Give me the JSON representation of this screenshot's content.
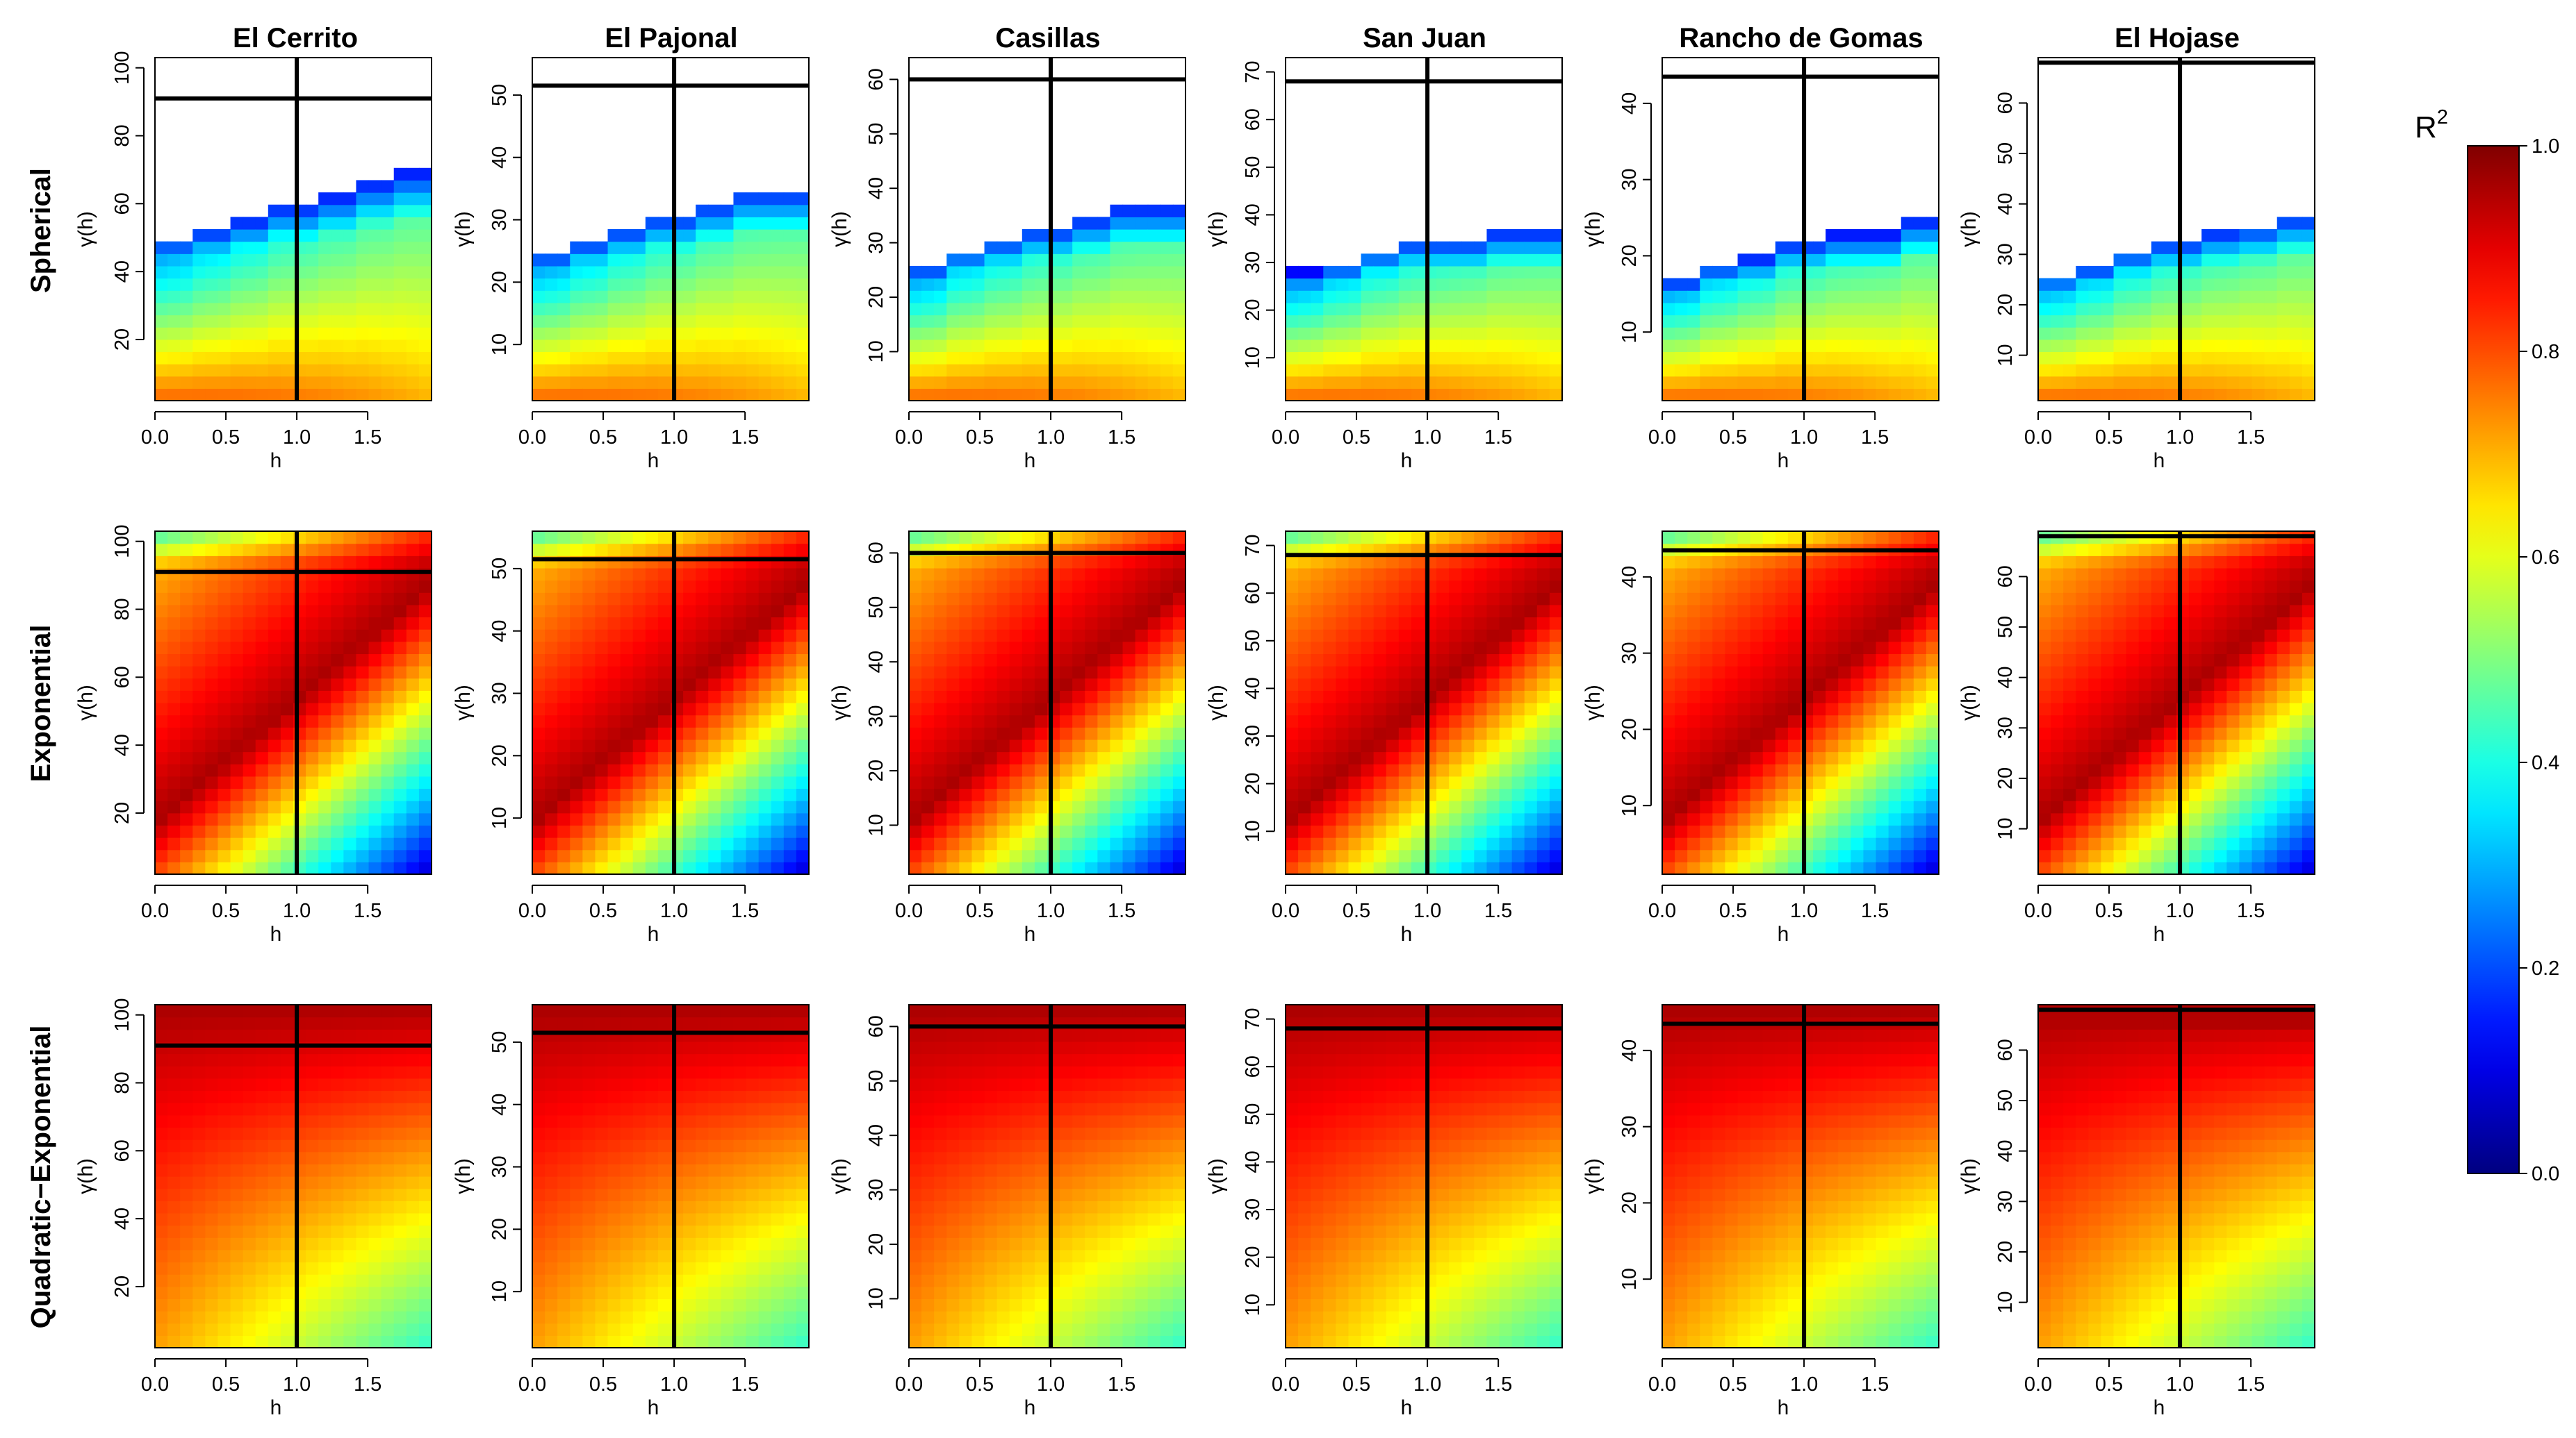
{
  "chart_data": {
    "type": "heatmap",
    "columns": [
      "El Cerrito",
      "El Pajonal",
      "Casillas",
      "San Juan",
      "Rancho de Gomas",
      "El Hojase"
    ],
    "rows": [
      "Spherical",
      "Exponential",
      "Quadratic−Exponential"
    ],
    "xlabel": "h",
    "ylabel": "γ(h)",
    "xlim": [
      0,
      1.95
    ],
    "x_ticks": [
      "0.0",
      "0.5",
      "1.0",
      "1.5"
    ],
    "vertical_line_h": 1.0,
    "sites": [
      {
        "name": "El Cerrito",
        "ylim": [
          2,
          103
        ],
        "y_ticks": [
          "20",
          "40",
          "60",
          "80",
          "100"
        ],
        "hline": 91,
        "spherical_top": [
          50,
          53,
          56,
          60,
          63,
          67,
          70
        ]
      },
      {
        "name": "El Pajonal",
        "ylim": [
          1,
          56
        ],
        "y_ticks": [
          "10",
          "20",
          "30",
          "40",
          "50"
        ],
        "hline": 51.5,
        "spherical_top": [
          25,
          27,
          29,
          31,
          33,
          35,
          35
        ]
      },
      {
        "name": "Casillas",
        "ylim": [
          1,
          64
        ],
        "y_ticks": [
          "10",
          "20",
          "30",
          "40",
          "50",
          "60"
        ],
        "hline": 60,
        "spherical_top": [
          26,
          29,
          31,
          33,
          35,
          37,
          37
        ]
      },
      {
        "name": "San Juan",
        "ylim": [
          1,
          73
        ],
        "y_ticks": [
          "10",
          "20",
          "30",
          "40",
          "50",
          "60",
          "70"
        ],
        "hline": 68,
        "spherical_top": [
          28,
          30,
          33,
          35,
          35,
          37,
          37
        ]
      },
      {
        "name": "Rancho de Gomas",
        "ylim": [
          1,
          46
        ],
        "y_ticks": [
          "10",
          "20",
          "30",
          "40"
        ],
        "hline": 43.5,
        "spherical_top": [
          17,
          19,
          20,
          22,
          23,
          23,
          25
        ]
      },
      {
        "name": "El Hojase",
        "ylim": [
          1,
          69
        ],
        "y_ticks": [
          "10",
          "20",
          "30",
          "40",
          "50",
          "60"
        ],
        "hline": 68,
        "spherical_top": [
          26,
          28,
          31,
          33,
          35,
          36,
          38
        ]
      }
    ],
    "colorbar": {
      "title_base": "R",
      "title_sup": "2",
      "range": [
        0,
        1
      ],
      "ticks": [
        "0.0",
        "0.2",
        "0.4",
        "0.6",
        "0.8",
        "1.0"
      ],
      "colormap": "jet"
    }
  }
}
